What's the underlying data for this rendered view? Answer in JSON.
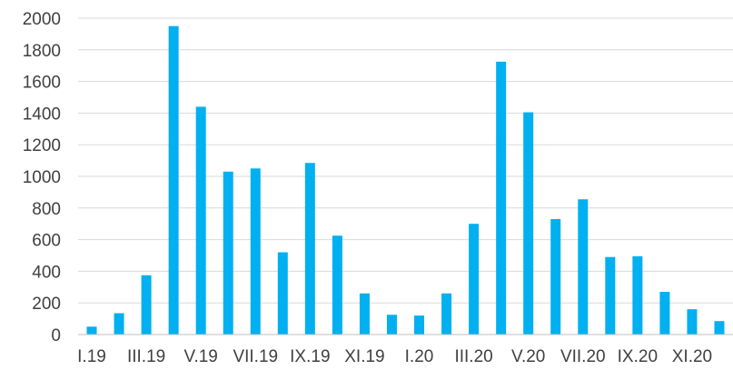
{
  "chart_data": {
    "type": "bar",
    "title": "",
    "xlabel": "",
    "ylabel": "",
    "ylim": [
      0,
      2000
    ],
    "yticks": [
      0,
      200,
      400,
      600,
      800,
      1000,
      1200,
      1400,
      1600,
      1800,
      2000
    ],
    "grid": true,
    "legend": "none",
    "bar_color": "#00b0f0",
    "categories": [
      "I.19",
      "II.19",
      "III.19",
      "IV.19",
      "V.19",
      "VI.19",
      "VII.19",
      "VIII.19",
      "IX.19",
      "X.19",
      "XI.19",
      "XII.19",
      "I.20",
      "II.20",
      "III.20",
      "IV.20",
      "V.20",
      "VI.20",
      "VII.20",
      "VIII.20",
      "IX.20",
      "X.20",
      "XI.20",
      "XII.20"
    ],
    "visible_tick_labels": [
      "I.19",
      "III.19",
      "V.19",
      "VII.19",
      "IX.19",
      "XI.19",
      "I.20",
      "III.20",
      "V.20",
      "VII.20",
      "IX.20",
      "XI.20"
    ],
    "values": [
      50,
      135,
      375,
      1950,
      1440,
      1030,
      1050,
      520,
      1085,
      625,
      260,
      125,
      120,
      260,
      700,
      1725,
      1405,
      730,
      855,
      490,
      495,
      270,
      160,
      85
    ]
  }
}
